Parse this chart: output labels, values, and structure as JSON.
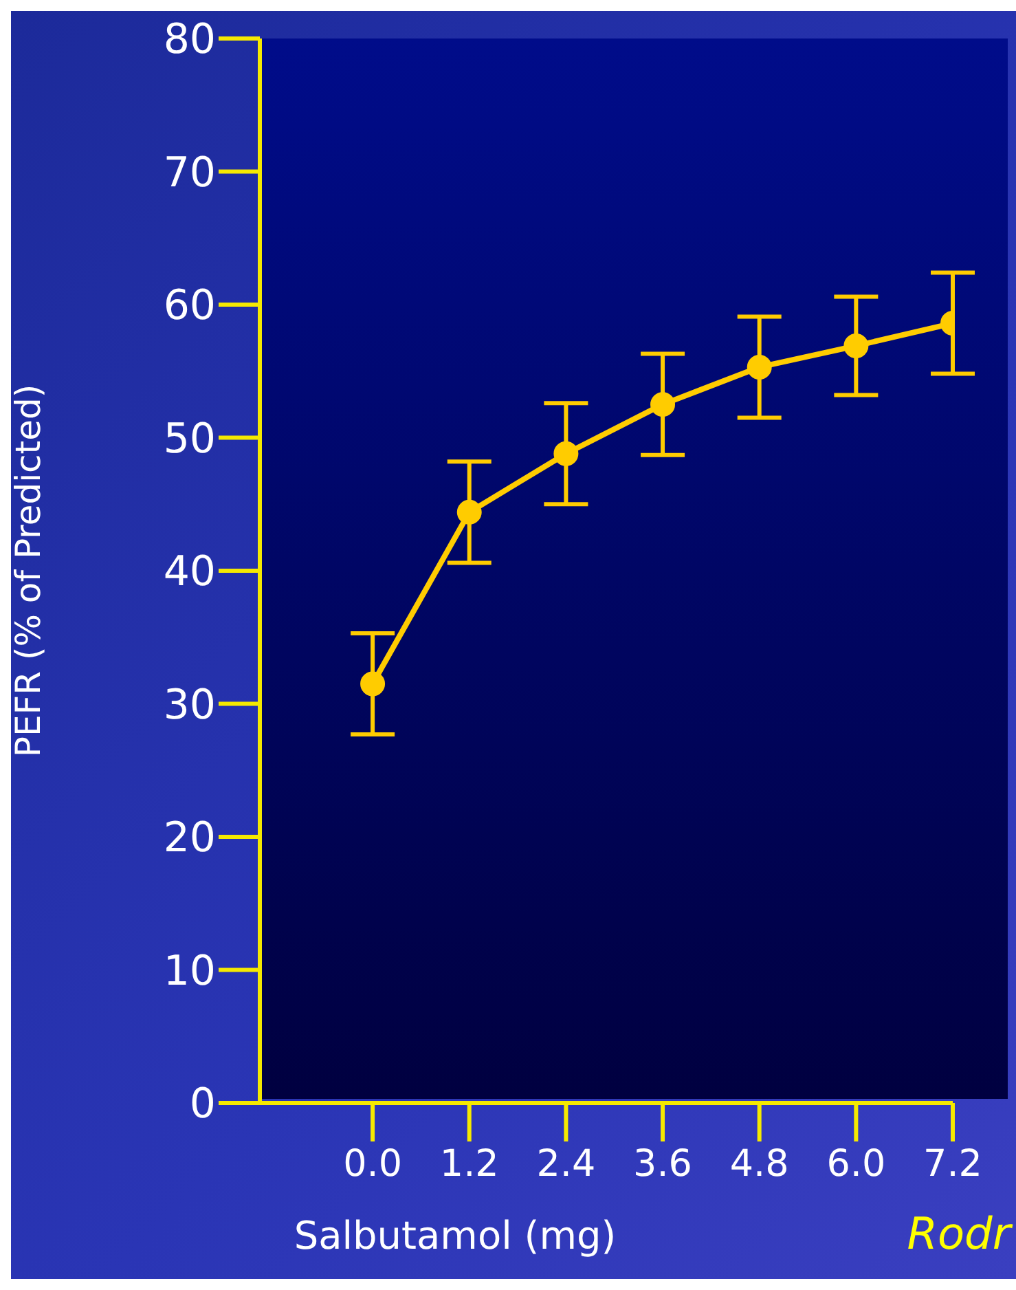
{
  "chart_data": {
    "type": "line",
    "xlabel": "Salbutamol (mg)",
    "ylabel": "PEFR (% of Predicted)",
    "x": [
      0,
      1.2,
      2.4,
      3.6,
      4.8,
      6.0,
      7.2
    ],
    "series": [
      {
        "color": "#ffcc00",
        "values": [
          31.5,
          44.4,
          48.8,
          52.5,
          55.3,
          56.9,
          58.6
        ],
        "errors": [
          3.8,
          3.8,
          3.8,
          3.8,
          3.8,
          3.7,
          3.8
        ]
      }
    ],
    "xlim": [
      -1.4,
      7.2
    ],
    "xticks": [
      {
        "value": 0,
        "label": "0.0"
      },
      {
        "value": 1.2,
        "label": "1.2"
      },
      {
        "value": 2.4,
        "label": "2.4"
      },
      {
        "value": 3.6,
        "label": "3.6"
      },
      {
        "value": 4.8,
        "label": "4.8"
      },
      {
        "value": 6.0,
        "label": "6.0"
      },
      {
        "value": 7.2,
        "label": "7.2"
      }
    ],
    "ylim": [
      0,
      80
    ],
    "yticks": [
      0,
      10,
      20,
      30,
      40,
      50,
      60,
      70,
      80
    ],
    "marker": "circle",
    "line_style": "solid",
    "annotations": [
      "Rodr"
    ]
  }
}
